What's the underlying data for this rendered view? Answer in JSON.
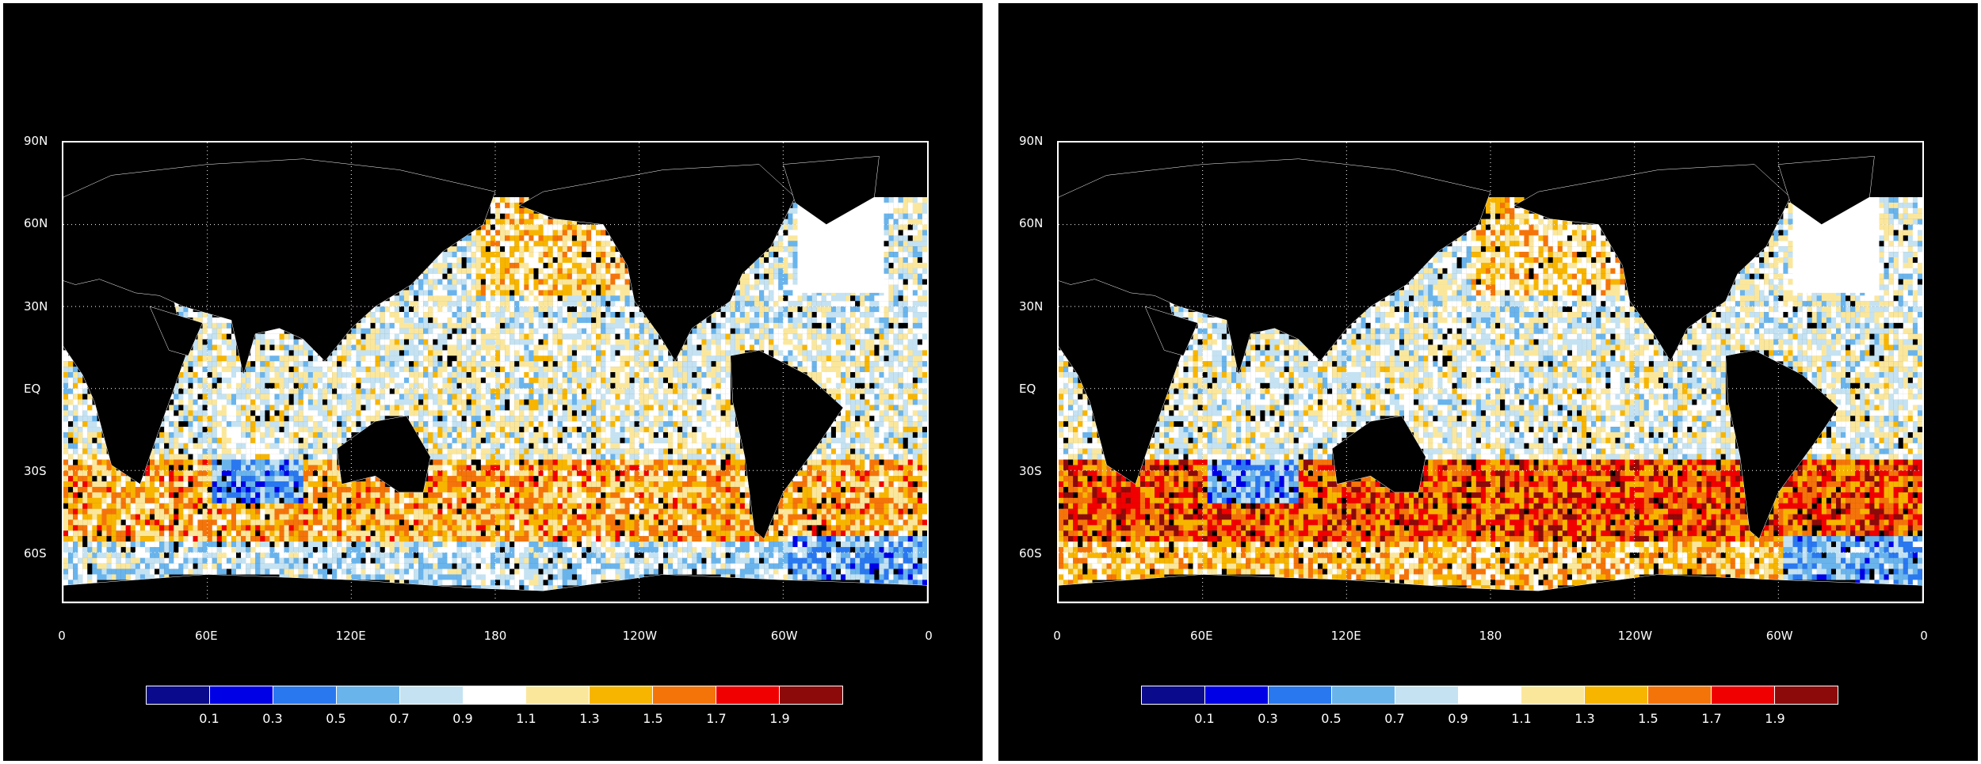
{
  "panels": [
    {
      "id": "left",
      "variant": "a"
    },
    {
      "id": "right",
      "variant": "b"
    }
  ],
  "axes": {
    "y_ticks": [
      "90N",
      "60N",
      "30N",
      "EQ",
      "30S",
      "60S"
    ],
    "y_values": [
      90,
      60,
      30,
      0,
      -30,
      -60
    ],
    "x_ticks": [
      "0",
      "60E",
      "120E",
      "180",
      "120W",
      "60W",
      "0"
    ],
    "x_values": [
      0,
      60,
      120,
      180,
      240,
      300,
      360
    ],
    "lat_range": [
      -78,
      90
    ],
    "lon_range": [
      0,
      360
    ]
  },
  "colorbar": {
    "colors": [
      "#0a0a8c",
      "#0000e6",
      "#2a78f0",
      "#6ab4ec",
      "#c4e2f2",
      "#ffffff",
      "#fbe79c",
      "#f7b500",
      "#f5740a",
      "#f00000",
      "#8c0a0a"
    ],
    "labels": [
      "0.1",
      "0.3",
      "0.5",
      "0.7",
      "0.9",
      "1.1",
      "1.3",
      "1.5",
      "1.7",
      "1.9"
    ]
  },
  "colors": {
    "background": "#000000",
    "coastline": "#ffffff",
    "land": "#000000"
  }
}
